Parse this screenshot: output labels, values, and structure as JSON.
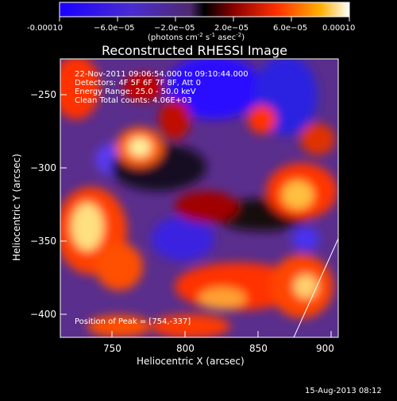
{
  "colorbar": {
    "ticks": [
      "-0.00010",
      "−6.0e−05",
      "−2.0e−05",
      "2.0e−05",
      "6.0e−05",
      "0.00010"
    ],
    "units_main": "(photons cm",
    "units_sup1": "-2",
    "units_mid": " s",
    "units_sup2": "-1",
    "units_tail": " asec",
    "units_sup3": "-2",
    "units_close": ")",
    "range": [
      -0.0001,
      0.0001
    ]
  },
  "title": "Reconstructed RHESSI Image",
  "info_lines": [
    "22-Nov-2011 09:06:54.000 to 09:10:44.000",
    "Detectors: 4F 5F 6F 7F 8F, Att 0",
    "Energy Range: 25.0 - 50.0 keV",
    "Clean    Total counts: 4.06E+03"
  ],
  "peak_text": "Position of Peak = [754,-337]",
  "xaxis": {
    "label": "Heliocentric X (arcsec)",
    "ticks": [
      "750",
      "800",
      "850",
      "900"
    ],
    "range": [
      715,
      905
    ]
  },
  "yaxis": {
    "label": "Heliocentric Y (arcsec)",
    "ticks": [
      "−250",
      "−300",
      "−350",
      "−400"
    ],
    "range": [
      -418,
      -225
    ]
  },
  "footer_timestamp": "15-Aug-2013 08:12",
  "colors": {
    "background": "#000000",
    "low": "#2b10ff",
    "mid": "#6b3fa0",
    "high": "#ff3a00",
    "peak": "#fff2a0"
  }
}
